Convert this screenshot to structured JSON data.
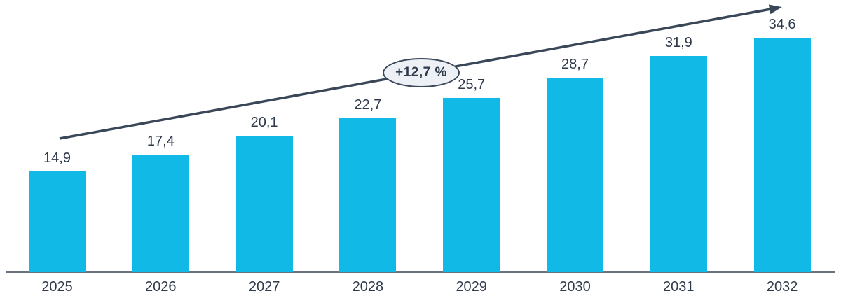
{
  "chart_data": {
    "type": "bar",
    "title": "",
    "xlabel": "",
    "ylabel": "",
    "categories": [
      "2025",
      "2026",
      "2027",
      "2028",
      "2029",
      "2030",
      "2031",
      "2032"
    ],
    "values": [
      14.9,
      17.4,
      20.1,
      22.7,
      25.7,
      28.7,
      31.9,
      34.6
    ],
    "value_labels": [
      "14,9",
      "17,4",
      "20,1",
      "22,7",
      "25,7",
      "28,7",
      "31,9",
      "34,6"
    ],
    "ylim": [
      0,
      36
    ],
    "grid": false,
    "legend": null,
    "annotation": {
      "label": "+12,7 %"
    },
    "colors": {
      "bar": "#10B9E6",
      "arrow": "#3A4759",
      "axis": "#6A7480",
      "label": "#2F3A4A",
      "badge_fill": "#EDF1F6",
      "badge_border": "#3A4759"
    }
  }
}
